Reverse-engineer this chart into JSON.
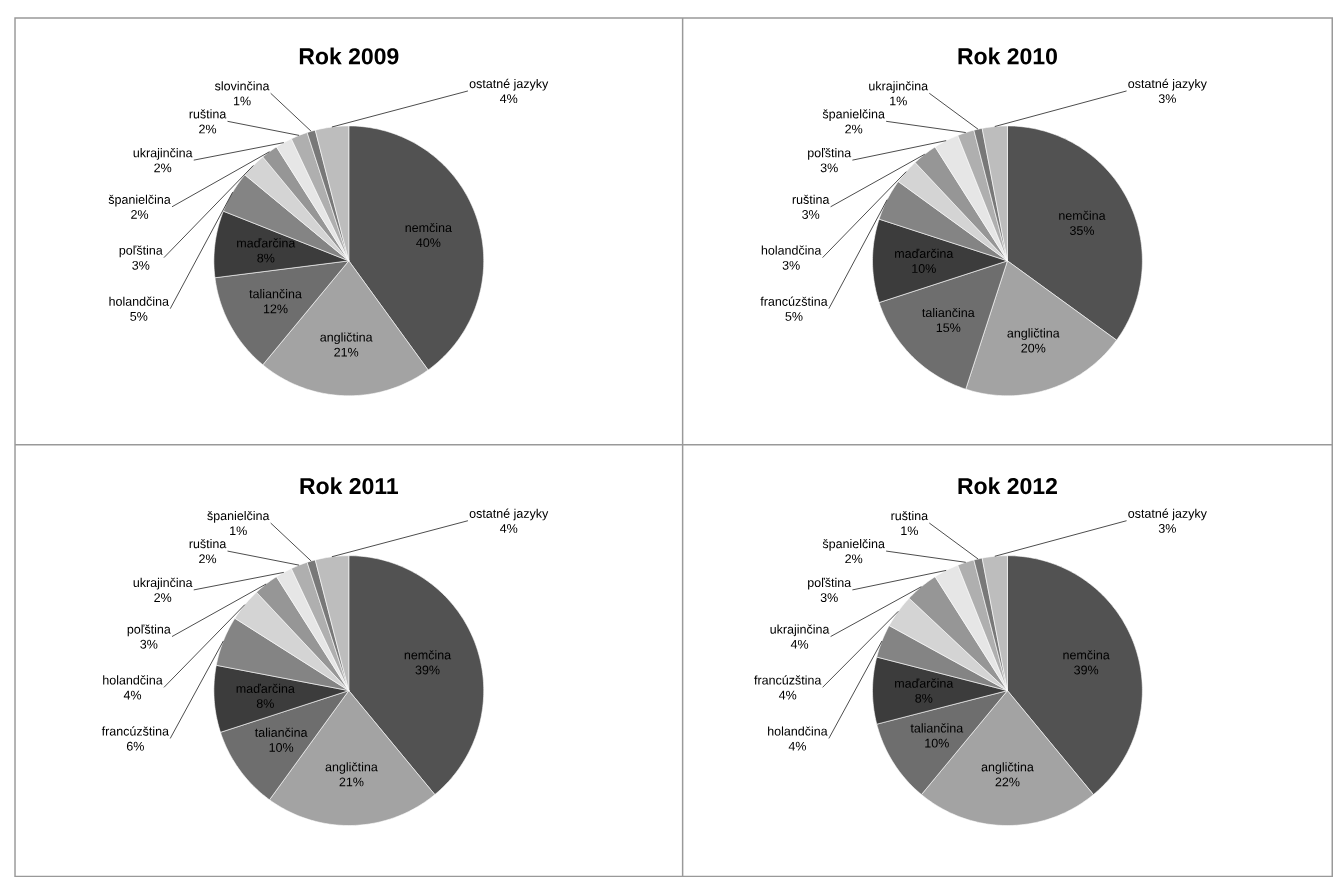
{
  "chart_data": [
    {
      "type": "pie",
      "title": "Rok 2009",
      "categories": [
        "nemčina",
        "angličtina",
        "taliančina",
        "maďarčina",
        "holandčina",
        "poľština",
        "španielčina",
        "ukrajinčina",
        "ruština",
        "slovinčina",
        "ostatné jazyky"
      ],
      "values": [
        40,
        21,
        12,
        8,
        5,
        3,
        2,
        2,
        2,
        1,
        4
      ],
      "value_labels": [
        "40%",
        "21%",
        "12%",
        "8%",
        "5%",
        "3%",
        "2%",
        "2%",
        "2%",
        "1%",
        "4%"
      ],
      "colors": [
        "#525252",
        "#a3a3a3",
        "#6e6e6e",
        "#3c3c3c",
        "#848484",
        "#d4d4d4",
        "#969696",
        "#e6e6e6",
        "#afafaf",
        "#787878",
        "#bdbdbd"
      ]
    },
    {
      "type": "pie",
      "title": "Rok 2010",
      "categories": [
        "nemčina",
        "angličtina",
        "taliančina",
        "maďarčina",
        "francúzština",
        "holandčina",
        "ruština",
        "poľština",
        "španielčina",
        "ukrajinčina",
        "ostatné jazyky"
      ],
      "values": [
        35,
        20,
        15,
        10,
        5,
        3,
        3,
        3,
        2,
        1,
        3
      ],
      "value_labels": [
        "35%",
        "20%",
        "15%",
        "10%",
        "5%",
        "3%",
        "3%",
        "3%",
        "2%",
        "1%",
        "3%"
      ],
      "colors": [
        "#525252",
        "#a3a3a3",
        "#6e6e6e",
        "#3c3c3c",
        "#848484",
        "#d4d4d4",
        "#969696",
        "#e6e6e6",
        "#afafaf",
        "#787878",
        "#bdbdbd"
      ]
    },
    {
      "type": "pie",
      "title": "Rok 2011",
      "categories": [
        "nemčina",
        "angličtina",
        "taliančina",
        "maďarčina",
        "francúzština",
        "holandčina",
        "poľština",
        "ukrajinčina",
        "ruština",
        "španielčina",
        "ostatné jazyky"
      ],
      "values": [
        39,
        21,
        10,
        8,
        6,
        4,
        3,
        2,
        2,
        1,
        4
      ],
      "value_labels": [
        "39%",
        "21%",
        "10%",
        "8%",
        "6%",
        "4%",
        "3%",
        "2%",
        "2%",
        "1%",
        "4%"
      ],
      "colors": [
        "#525252",
        "#a3a3a3",
        "#6e6e6e",
        "#3c3c3c",
        "#848484",
        "#d4d4d4",
        "#969696",
        "#e6e6e6",
        "#afafaf",
        "#787878",
        "#bdbdbd"
      ]
    },
    {
      "type": "pie",
      "title": "Rok 2012",
      "categories": [
        "nemčina",
        "angličtina",
        "taliančina",
        "maďarčina",
        "holandčina",
        "francúzština",
        "ukrajinčina",
        "poľština",
        "španielčina",
        "ruština",
        "ostatné jazyky"
      ],
      "values": [
        39,
        22,
        10,
        8,
        4,
        4,
        4,
        3,
        2,
        1,
        3
      ],
      "value_labels": [
        "39%",
        "22%",
        "10%",
        "8%",
        "4%",
        "4%",
        "4%",
        "3%",
        "2%",
        "1%",
        "3%"
      ],
      "colors": [
        "#525252",
        "#a3a3a3",
        "#6e6e6e",
        "#3c3c3c",
        "#848484",
        "#d4d4d4",
        "#969696",
        "#e6e6e6",
        "#afafaf",
        "#787878",
        "#bdbdbd"
      ]
    }
  ]
}
